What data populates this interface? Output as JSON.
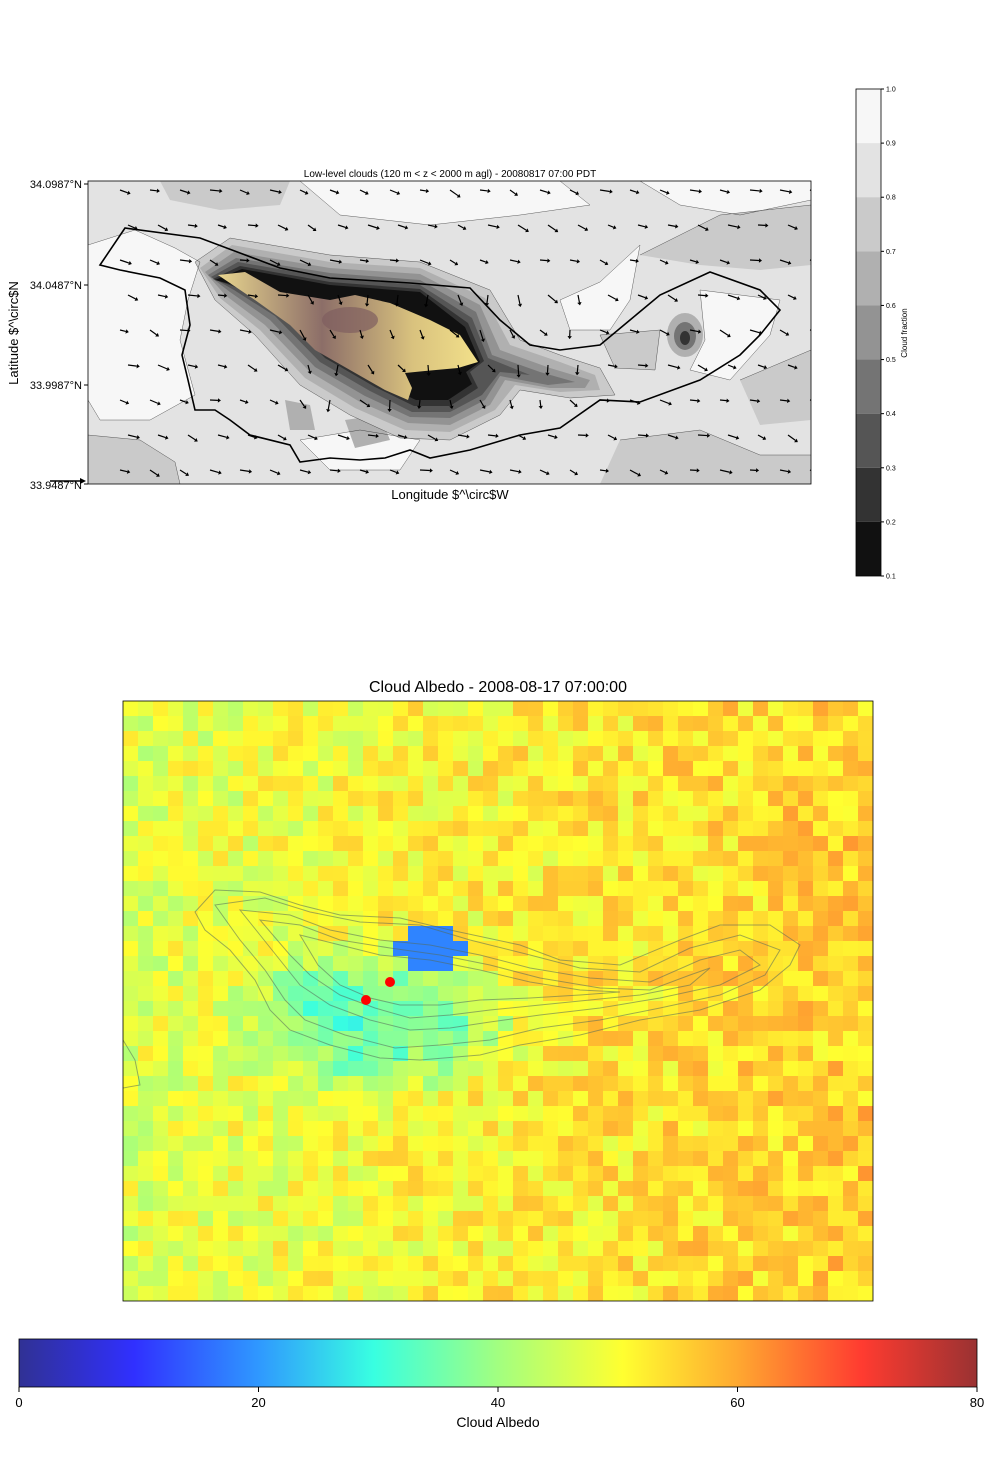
{
  "chart_data": [
    {
      "type": "heatmap",
      "title": "Low-level clouds (120 m < z < 2000 m agl) - 20080817 07:00 PDT",
      "xlabel": "Longitude $^\\circ$W",
      "ylabel": "Latitude $^\\circ$N",
      "ytick_labels": [
        "34.0987°N",
        "34.0487°N",
        "33.9987°N",
        "33.9487°N"
      ],
      "ylim": [
        33.9487,
        34.0987
      ],
      "colorbar": {
        "label": "Cloud fraction",
        "ticks": [
          "1.0",
          "0.9",
          "0.8",
          "0.7",
          "0.6",
          "0.5",
          "0.4",
          "0.3",
          "0.2",
          "0.1"
        ],
        "range": [
          0.1,
          1.0
        ],
        "levels": [
          {
            "lo": 0.9,
            "hi": 1.0,
            "color": "#f7f7f7"
          },
          {
            "lo": 0.8,
            "hi": 0.9,
            "color": "#e3e3e3"
          },
          {
            "lo": 0.7,
            "hi": 0.8,
            "color": "#cacaca"
          },
          {
            "lo": 0.6,
            "hi": 0.7,
            "color": "#b0b0b0"
          },
          {
            "lo": 0.5,
            "hi": 0.6,
            "color": "#939393"
          },
          {
            "lo": 0.4,
            "hi": 0.5,
            "color": "#747474"
          },
          {
            "lo": 0.3,
            "hi": 0.4,
            "color": "#555555"
          },
          {
            "lo": 0.2,
            "hi": 0.3,
            "color": "#333333"
          },
          {
            "lo": 0.1,
            "hi": 0.2,
            "color": "#111111"
          }
        ]
      },
      "wind_vectors": "shown",
      "island_terrain": "shown"
    },
    {
      "type": "heatmap",
      "title": "Cloud Albedo - 2008-08-17 07:00:00",
      "colorbar": {
        "label": "Cloud Albedo",
        "ticks": [
          "0",
          "20",
          "40",
          "60",
          "80"
        ],
        "range": [
          0,
          80
        ],
        "colormap": "jet",
        "orientation": "horizontal"
      },
      "overlay": "terrain contours",
      "markers": [
        {
          "color": "#ff0000",
          "shape": "circle"
        },
        {
          "color": "#ff0000",
          "shape": "circle"
        }
      ]
    }
  ]
}
